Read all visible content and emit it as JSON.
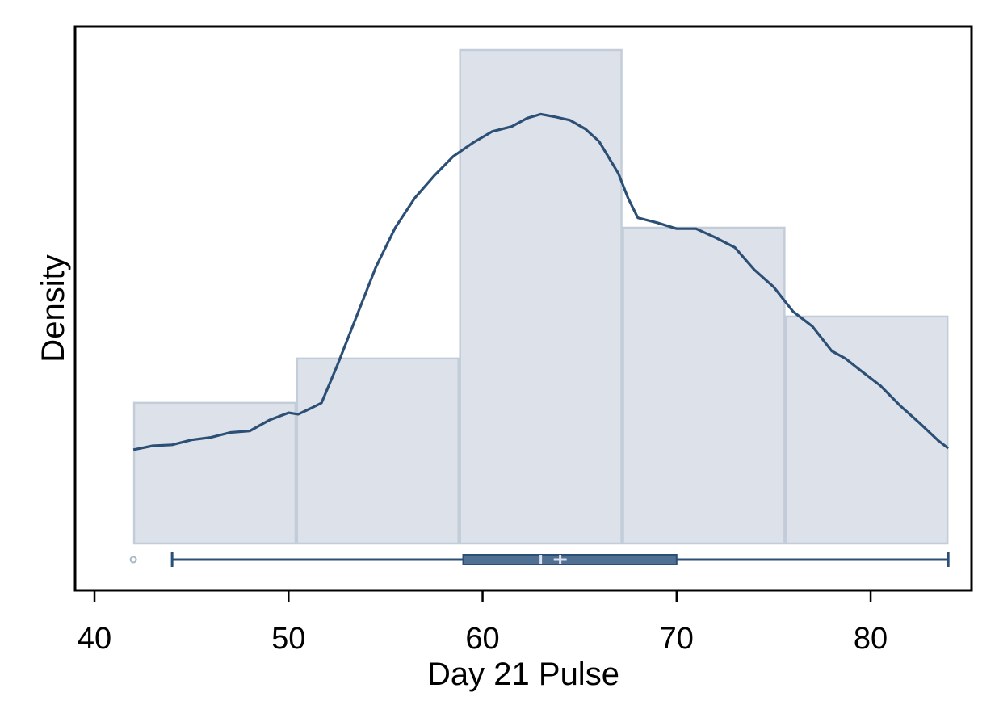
{
  "chart_data": {
    "type": "histogram",
    "xlabel": "Day 21 Pulse",
    "ylabel": "Density",
    "xlim": [
      39,
      85.2
    ],
    "ylim": [
      -0.11,
      1.0
    ],
    "x_ticks": [
      40,
      50,
      60,
      70,
      80
    ],
    "y_ticks_shown": false,
    "grid": false,
    "histogram": {
      "bins": [
        {
          "start": 42.0,
          "end": 50.4,
          "density": 0.285
        },
        {
          "start": 50.4,
          "end": 58.8,
          "density": 0.375
        },
        {
          "start": 58.8,
          "end": 67.2,
          "density": 1.0
        },
        {
          "start": 67.2,
          "end": 75.6,
          "density": 0.64
        },
        {
          "start": 75.6,
          "end": 84.0,
          "density": 0.46
        }
      ],
      "fill_color": "#dde2ea",
      "edge_color": "#c3cdd9"
    },
    "kde": {
      "color": "#2c4f76",
      "x": [
        42.0,
        43.0,
        44.0,
        45.0,
        46.0,
        47.0,
        48.0,
        49.0,
        50.0,
        50.5,
        51.2,
        51.7,
        52.5,
        53.5,
        54.5,
        55.5,
        56.5,
        57.5,
        58.5,
        59.5,
        60.5,
        61.5,
        62.3,
        63.0,
        63.7,
        64.5,
        65.3,
        66.0,
        67.0,
        67.5,
        68.0,
        69.0,
        70.0,
        71.0,
        72.0,
        73.0,
        74.0,
        75.0,
        76.0,
        77.0,
        78.0,
        78.7,
        79.5,
        80.5,
        81.5,
        82.5,
        83.5,
        84.0
      ],
      "y": [
        0.19,
        0.198,
        0.2,
        0.21,
        0.215,
        0.225,
        0.228,
        0.25,
        0.265,
        0.262,
        0.275,
        0.285,
        0.36,
        0.46,
        0.56,
        0.64,
        0.7,
        0.745,
        0.785,
        0.812,
        0.835,
        0.845,
        0.862,
        0.87,
        0.865,
        0.858,
        0.84,
        0.815,
        0.75,
        0.7,
        0.66,
        0.65,
        0.638,
        0.638,
        0.62,
        0.6,
        0.555,
        0.52,
        0.47,
        0.44,
        0.39,
        0.375,
        0.35,
        0.32,
        0.28,
        0.245,
        0.208,
        0.193
      ]
    },
    "boxplot": {
      "color": "#2c4f76",
      "whisker_low": 44,
      "q1": 59,
      "median": 63,
      "mean": 64,
      "q3": 70,
      "whisker_high": 84,
      "outliers": [
        42
      ]
    }
  }
}
